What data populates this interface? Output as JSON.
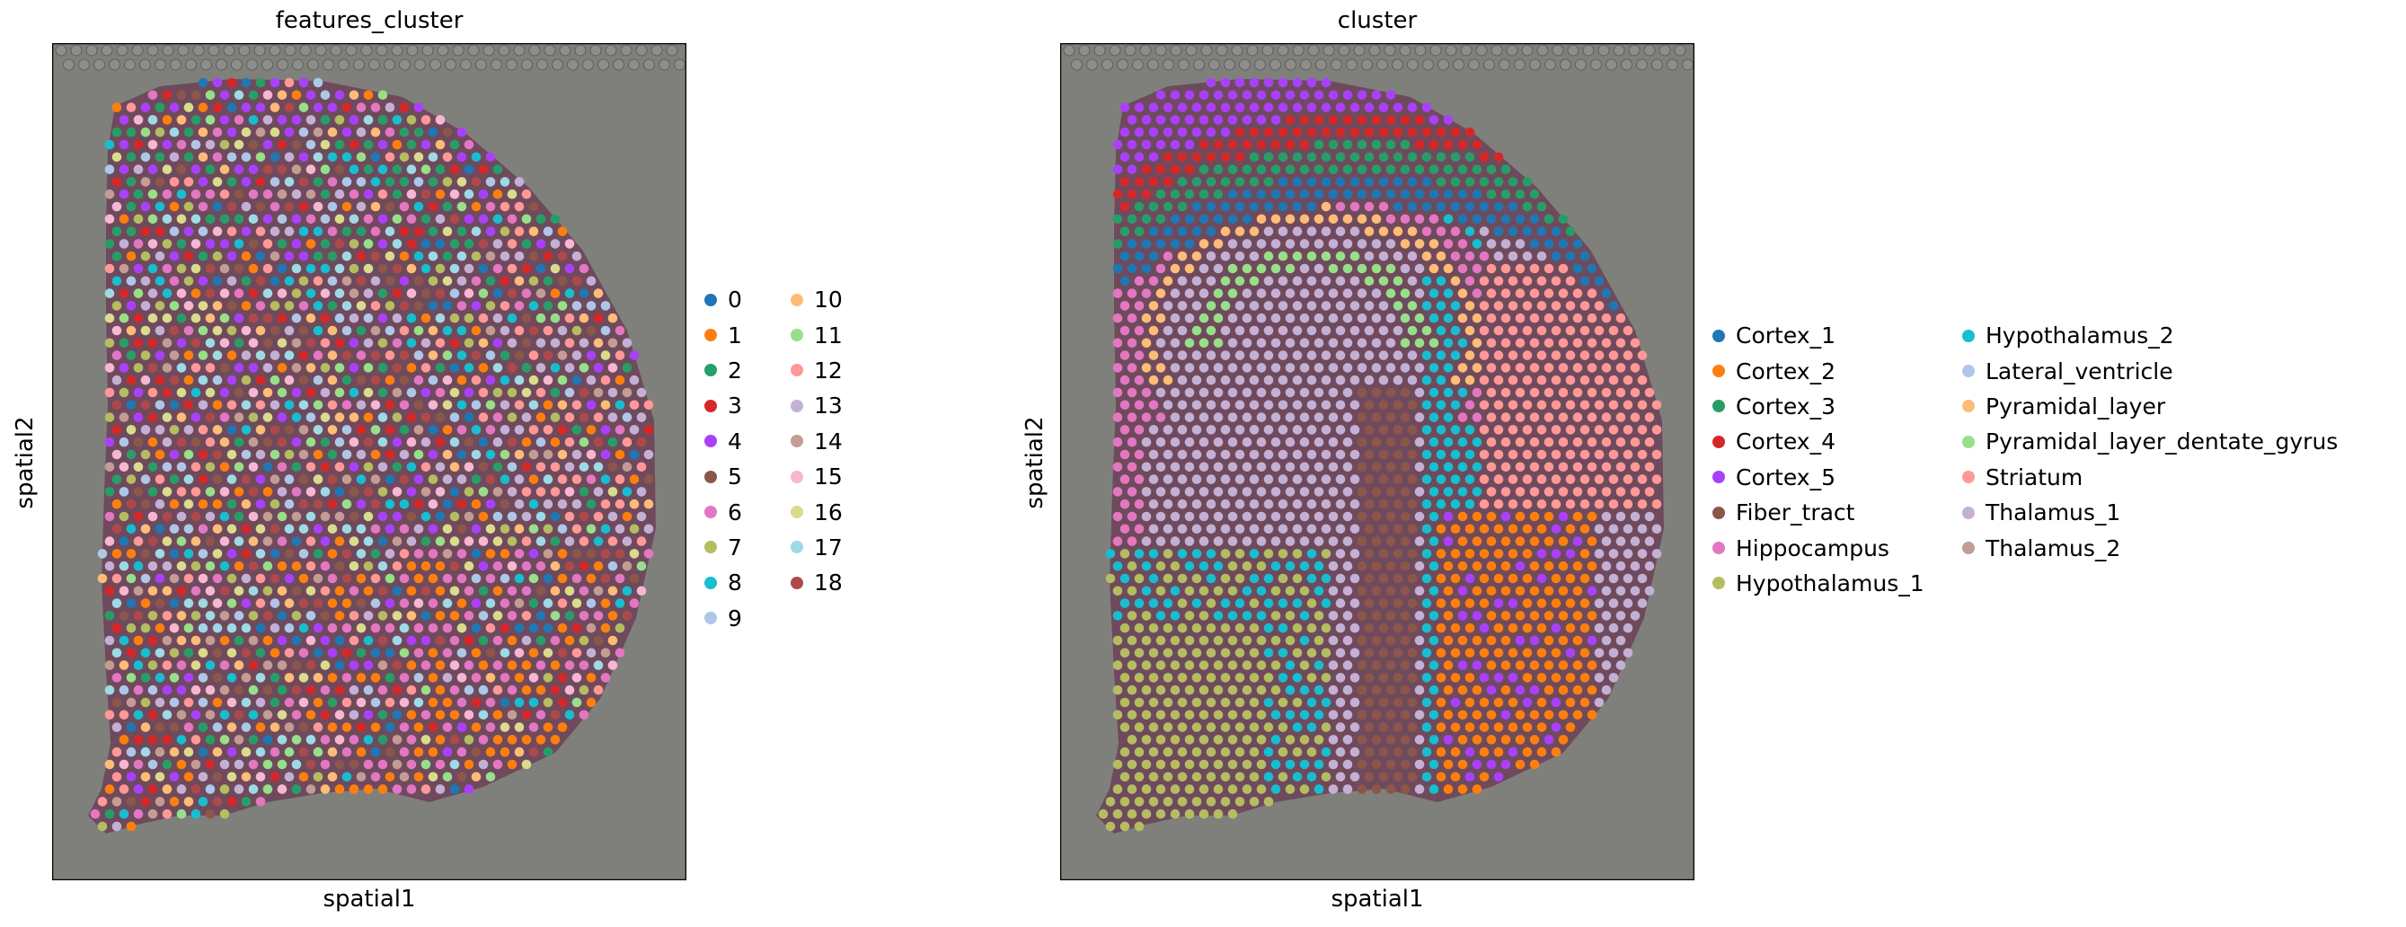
{
  "palette": {
    "c0": "#1f77b4",
    "c1": "#ff7f0e",
    "c2": "#279e68",
    "c3": "#d62728",
    "c4": "#aa40fc",
    "c5": "#8c564b",
    "c6": "#e377c2",
    "c7": "#b5bd61",
    "c8": "#17becf",
    "c9": "#aec7e8",
    "c10": "#ffbb78",
    "c11": "#98df8a",
    "c12": "#ff9896",
    "c13": "#c5b0d5",
    "c14": "#c49c94",
    "c15": "#f7b6d2",
    "c16": "#dbdb8d",
    "c17": "#9edae5",
    "c18": "#ad494a",
    "tissue": "#6e4a5c",
    "background": "#7f807c"
  },
  "chart_data": [
    {
      "type": "scatter",
      "title": "features_cluster",
      "xlabel": "spatial1",
      "ylabel": "spatial2",
      "background_image": "tissue section histology",
      "legend_placement": "right",
      "legend_columns": [
        [
          {
            "label": "0",
            "color": "#1f77b4"
          },
          {
            "label": "1",
            "color": "#ff7f0e"
          },
          {
            "label": "2",
            "color": "#279e68"
          },
          {
            "label": "3",
            "color": "#d62728"
          },
          {
            "label": "4",
            "color": "#aa40fc"
          },
          {
            "label": "5",
            "color": "#8c564b"
          },
          {
            "label": "6",
            "color": "#e377c2"
          },
          {
            "label": "7",
            "color": "#b5bd61"
          },
          {
            "label": "8",
            "color": "#17becf"
          },
          {
            "label": "9",
            "color": "#aec7e8"
          }
        ],
        [
          {
            "label": "10",
            "color": "#ffbb78"
          },
          {
            "label": "11",
            "color": "#98df8a"
          },
          {
            "label": "12",
            "color": "#ff9896"
          },
          {
            "label": "13",
            "color": "#c5b0d5"
          },
          {
            "label": "14",
            "color": "#c49c94"
          },
          {
            "label": "15",
            "color": "#f7b6d2"
          },
          {
            "label": "16",
            "color": "#dbdb8d"
          },
          {
            "label": "17",
            "color": "#9edae5"
          },
          {
            "label": "18",
            "color": "#ad494a"
          }
        ]
      ]
    },
    {
      "type": "scatter",
      "title": "cluster",
      "xlabel": "spatial1",
      "ylabel": "spatial2",
      "background_image": "tissue section histology",
      "legend_placement": "right",
      "legend_columns": [
        [
          {
            "label": "Cortex_1",
            "color": "#1f77b4"
          },
          {
            "label": "Cortex_2",
            "color": "#ff7f0e"
          },
          {
            "label": "Cortex_3",
            "color": "#279e68"
          },
          {
            "label": "Cortex_4",
            "color": "#d62728"
          },
          {
            "label": "Cortex_5",
            "color": "#aa40fc"
          },
          {
            "label": "Fiber_tract",
            "color": "#8c564b"
          },
          {
            "label": "Hippocampus",
            "color": "#e377c2"
          },
          {
            "label": "Hypothalamus_1",
            "color": "#b5bd61"
          }
        ],
        [
          {
            "label": "Hypothalamus_2",
            "color": "#17becf"
          },
          {
            "label": "Lateral_ventricle",
            "color": "#aec7e8"
          },
          {
            "label": "Pyramidal_layer",
            "color": "#ffbb78"
          },
          {
            "label": "Pyramidal_layer_dentate_gyrus",
            "color": "#98df8a"
          },
          {
            "label": "Striatum",
            "color": "#ff9896"
          },
          {
            "label": "Thalamus_1",
            "color": "#c5b0d5"
          },
          {
            "label": "Thalamus_2",
            "color": "#c49c94"
          }
        ]
      ]
    }
  ]
}
